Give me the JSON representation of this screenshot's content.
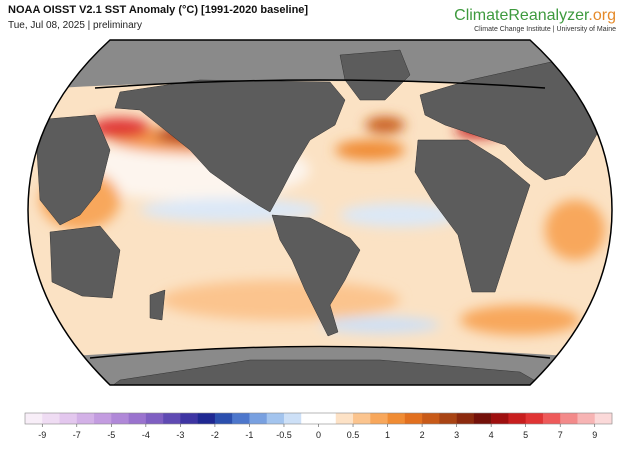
{
  "header": {
    "title": "NOAA OISST V2.1 SST Anomaly (°C) [1991-2020 baseline]",
    "subtitle": "Tue, Jul 08, 2025 | preliminary"
  },
  "logo": {
    "name": "ClimateReanalyzer",
    "suffix": ".org",
    "tagline": "Climate Change Institute | University of Maine"
  },
  "colorbar": {
    "ticks": [
      -9,
      -7,
      -5,
      -4,
      -3,
      -2,
      -1,
      -0.5,
      0,
      0.5,
      1,
      2,
      3,
      4,
      5,
      7,
      9
    ],
    "colors": [
      "#f8eef8",
      "#efdcf3",
      "#e3c7ee",
      "#d3b1e7",
      "#c39ce0",
      "#b088d8",
      "#9a73ce",
      "#7f5fc2",
      "#5f4ab3",
      "#3e35a3",
      "#1f2892",
      "#2b4fae",
      "#4d77cc",
      "#78a0e0",
      "#a3c4ee",
      "#cde0f7",
      "#ffffff",
      "#ffffff",
      "#fde2c6",
      "#fbc48e",
      "#f8a75b",
      "#f08c34",
      "#e2701f",
      "#c85a18",
      "#a94414",
      "#8c2a0e",
      "#74110a",
      "#9e0f0f",
      "#c81e1e",
      "#e03434",
      "#ee5a5a",
      "#f38a8a",
      "#f7b4b4",
      "#fbd9d9"
    ]
  }
}
